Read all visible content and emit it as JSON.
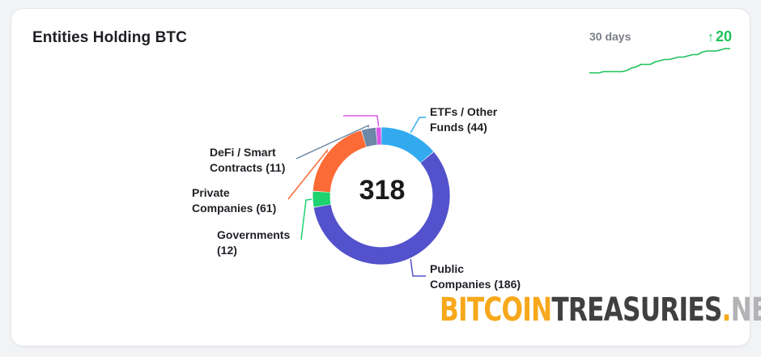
{
  "card": {
    "title": "Entities Holding BTC",
    "period_label": "30 days",
    "change_arrow": "↑",
    "change_value": "20",
    "change_color": "#1ec15b"
  },
  "chart_data": [
    {
      "type": "pie",
      "style": "donut",
      "center_label": "318",
      "slices": [
        {
          "label": "ETFs / Other Funds (44)",
          "lines": [
            "ETFs / Other",
            "Funds (44)"
          ],
          "value": 44,
          "color": "#33aaf0"
        },
        {
          "label": "Public Companies (186)",
          "lines": [
            "Public",
            "Companies (186)"
          ],
          "value": 186,
          "color": "#5352cc"
        },
        {
          "label": "Governments (12)",
          "lines": [
            "Governments",
            "(12)"
          ],
          "value": 12,
          "color": "#1fd36f"
        },
        {
          "label": "Private Companies (61)",
          "lines": [
            "Private",
            "Companies (61)"
          ],
          "value": 61,
          "color": "#fc6b36"
        },
        {
          "label": "DeFi / Smart Contracts (11)",
          "lines": [
            "DeFi / Smart",
            "Contracts (11)"
          ],
          "value": 11,
          "color": "#6d87a6"
        },
        {
          "label": "",
          "lines": [],
          "value": 4,
          "color": "#d858e6"
        }
      ]
    },
    {
      "type": "line",
      "style": "sparkline",
      "values": [
        0,
        0,
        0,
        1,
        1,
        1,
        1,
        1,
        2,
        4,
        5,
        7,
        7,
        7,
        9,
        10,
        11,
        11,
        12,
        13,
        13,
        14,
        15,
        15,
        17,
        18,
        18,
        18,
        19,
        20,
        20
      ],
      "color": "#1ec15b"
    }
  ],
  "watermark": {
    "part1": "BITCOIN",
    "part2": "TREASURIES",
    "part3": ".",
    "part4": "NET"
  }
}
